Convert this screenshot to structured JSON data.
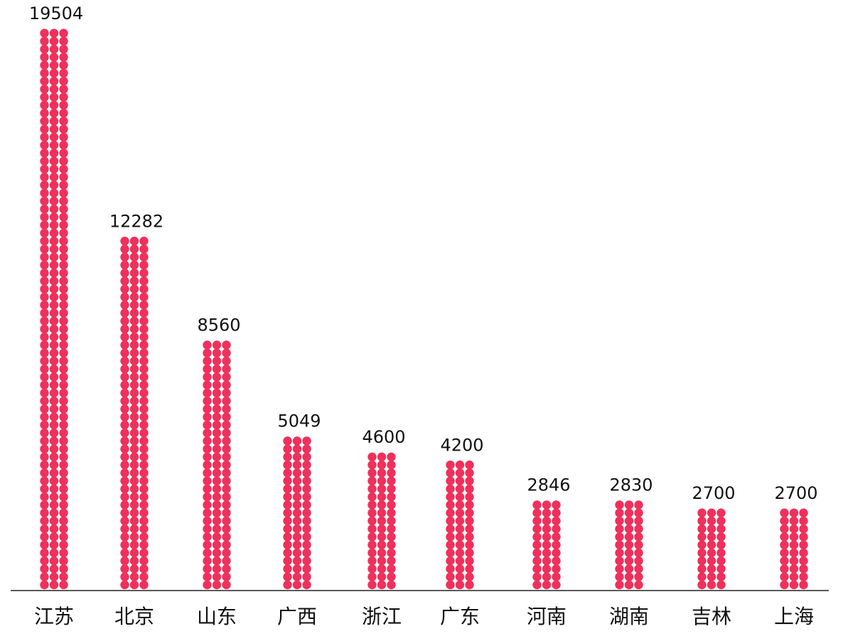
{
  "chart_data": {
    "type": "bar",
    "style": "dot-pictogram",
    "categories": [
      "江苏",
      "北京",
      "山东",
      "广西",
      "浙江",
      "广东",
      "河南",
      "湖南",
      "吉林",
      "上海"
    ],
    "values": [
      19504,
      12282,
      8560,
      5049,
      4600,
      4200,
      2846,
      2830,
      2700,
      2700
    ],
    "value_labels": [
      "19504",
      "12282",
      "8560",
      "5049",
      "4600",
      "4200",
      "2846",
      "2830",
      "2700",
      "2700"
    ],
    "dot_columns": 3,
    "dot_color": "#f0305c",
    "title": "",
    "xlabel": "",
    "ylabel": "",
    "ylim": [
      0,
      19504
    ],
    "grid": false,
    "legend": "none"
  }
}
